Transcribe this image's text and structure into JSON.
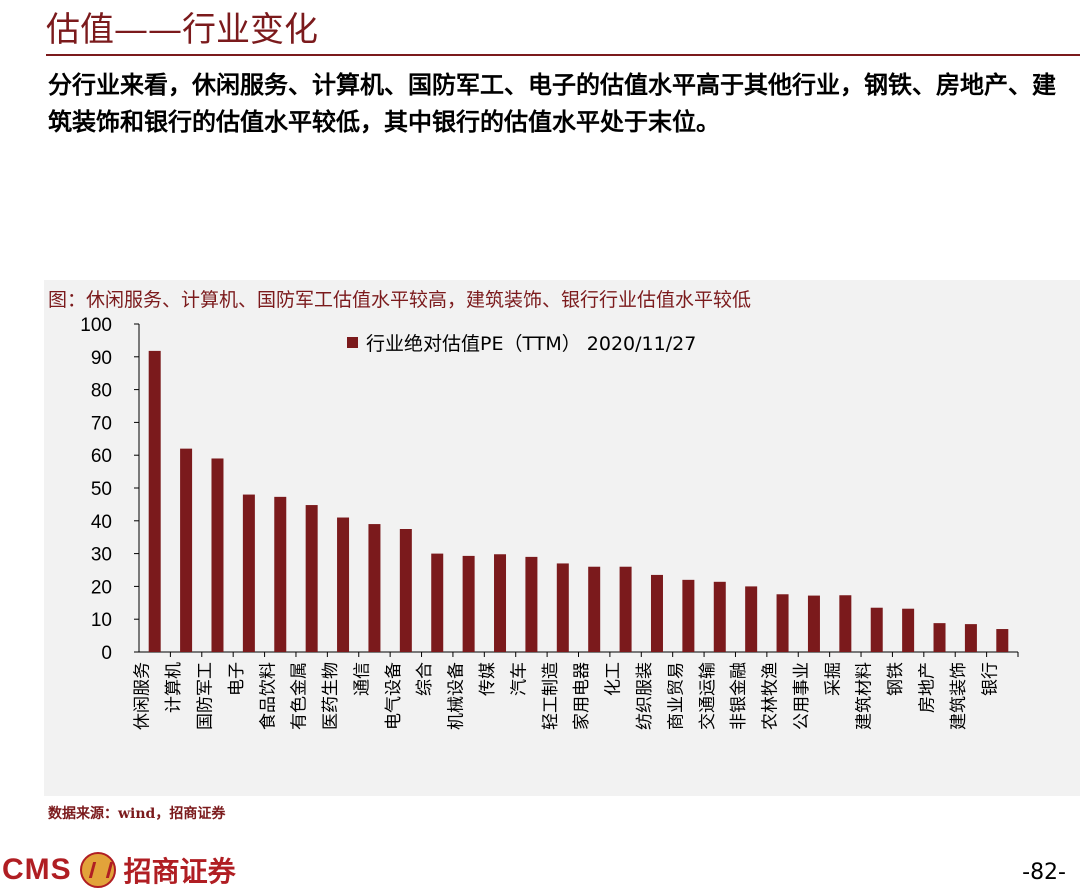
{
  "header": {
    "title": "估值——行业变化",
    "intro": "分行业来看，休闲服务、计算机、国防军工、电子的估值水平高于其他行业，钢铁、房地产、建筑装饰和银行的估值水平较低，其中银行的估值水平处于末位。"
  },
  "chart_data": {
    "type": "bar",
    "title": "图：休闲服务、计算机、国防军工估值水平较高，建筑装饰、银行行业估值水平较低",
    "categories": [
      "休闲服务",
      "计算机",
      "国防军工",
      "电子",
      "食品饮料",
      "有色金属",
      "医药生物",
      "通信",
      "电气设备",
      "综合",
      "机械设备",
      "传媒",
      "汽车",
      "轻工制造",
      "家用电器",
      "化工",
      "纺织服装",
      "商业贸易",
      "交通运输",
      "非银金融",
      "农林牧渔",
      "公用事业",
      "采掘",
      "建筑材料",
      "钢铁",
      "房地产",
      "建筑装饰",
      "银行"
    ],
    "series": [
      {
        "name": "行业绝对估值PE（TTM） 2020/11/27",
        "values": [
          91.8,
          62.0,
          59.0,
          48.0,
          47.3,
          44.8,
          41.0,
          39.0,
          37.5,
          30.0,
          29.3,
          29.8,
          29.0,
          27.0,
          26.0,
          26.0,
          23.5,
          22.0,
          21.4,
          20.0,
          17.6,
          17.2,
          17.3,
          13.5,
          13.2,
          8.8,
          8.5,
          7.0
        ]
      }
    ],
    "ylim": [
      0,
      100
    ],
    "yticks": [
      0,
      10,
      20,
      30,
      40,
      50,
      60,
      70,
      80,
      90,
      100
    ],
    "legend_position": "top-center",
    "bar_color": "#7B1A1C",
    "grid": false
  },
  "footer": {
    "source": "数据来源：wind，招商证券",
    "logo_text": "CMS",
    "logo_cn": "招商证券",
    "page_number": "-82-"
  },
  "colors": {
    "accent": "#7B1A1C",
    "logo_red": "#B01E23",
    "panel_bg": "#F2F2F2"
  }
}
